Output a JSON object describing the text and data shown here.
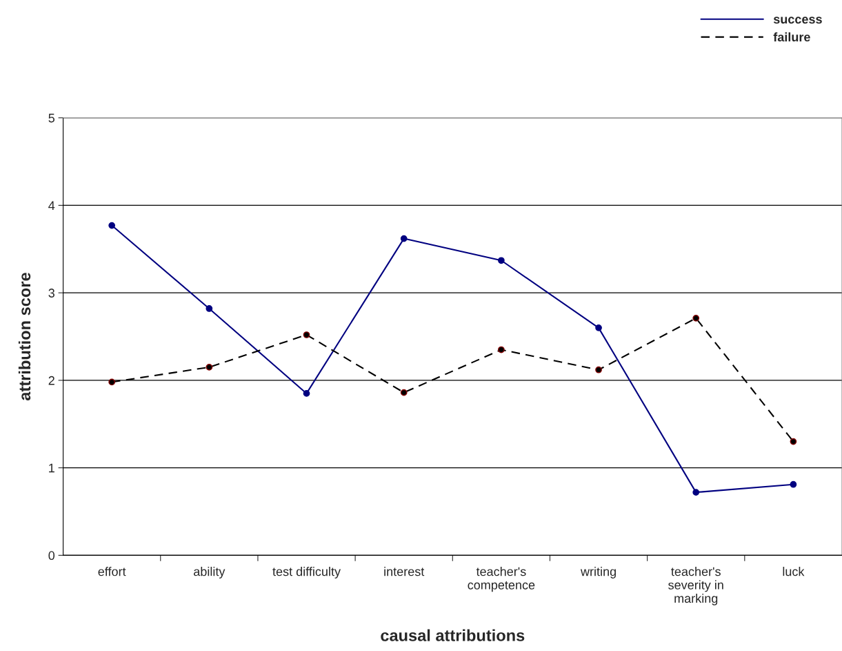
{
  "chart_data": {
    "type": "line",
    "xlabel": "causal attributions",
    "ylabel": "attribution score",
    "categories": [
      "effort",
      "ability",
      "test difficulty",
      "interest",
      "teacher's\ncompetence",
      "writing",
      "teacher's\nseverity in\nmarking",
      "luck"
    ],
    "series": [
      {
        "name": "success",
        "color": "#000080",
        "line_style": "solid",
        "values": [
          3.77,
          2.82,
          1.85,
          3.62,
          3.37,
          2.6,
          0.72,
          0.81
        ]
      },
      {
        "name": "failure",
        "color": "#000000",
        "line_style": "dashed",
        "values": [
          1.98,
          2.15,
          2.52,
          1.86,
          2.35,
          2.12,
          2.71,
          1.3
        ]
      }
    ],
    "ylim": [
      0,
      5
    ],
    "yticks": [
      0,
      1,
      2,
      3,
      4,
      5
    ],
    "grid": "y",
    "legend": "top right",
    "marker": "circle"
  }
}
